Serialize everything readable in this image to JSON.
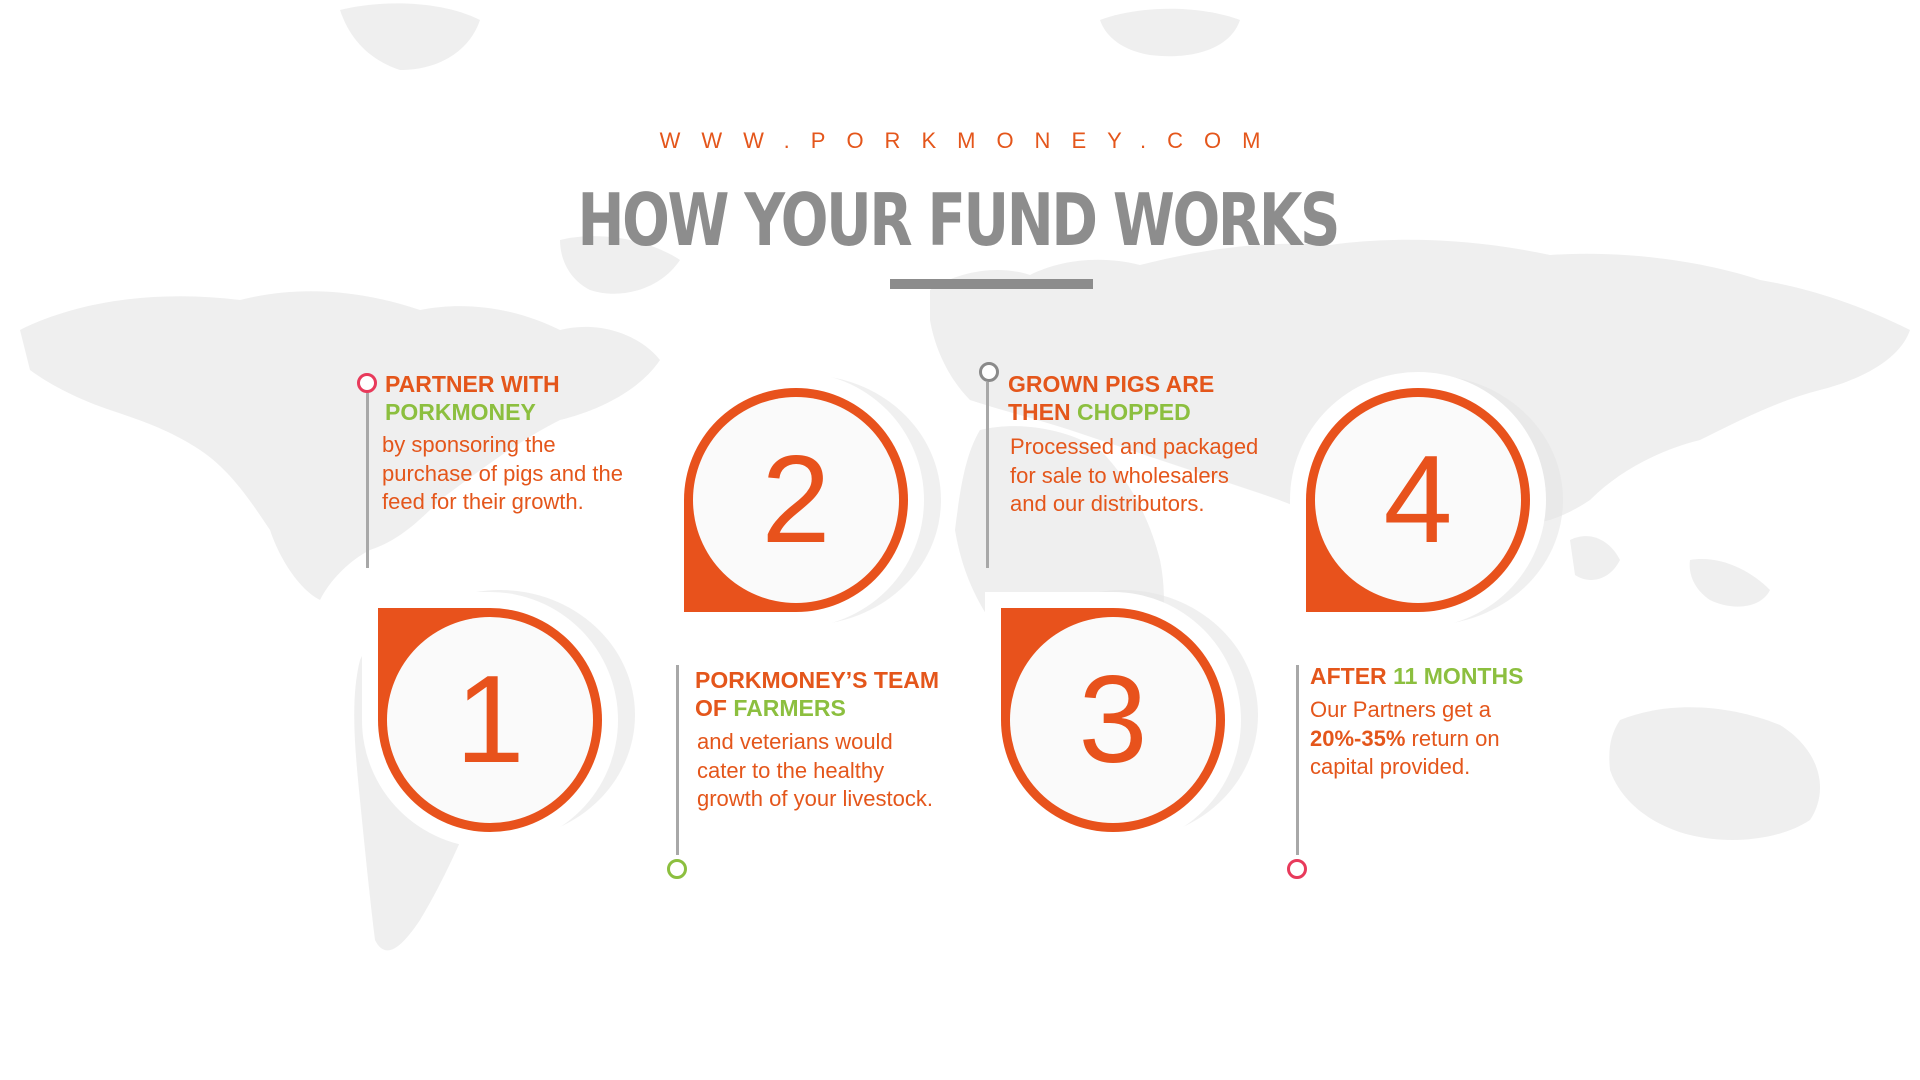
{
  "header": {
    "url": "WWW.PORKMONEY.COM",
    "title": "HOW YOUR FUND WORKS"
  },
  "colors": {
    "accent_orange": "#e8521c",
    "accent_green": "#8cbf3f",
    "title_gray": "#8d8d8d",
    "dot_red": "#e83a5b",
    "map_gray": "#ededed"
  },
  "steps": [
    {
      "number": "1",
      "title_a": "PARTNER WITH",
      "title_b": "PORKMONEY",
      "text": "by sponsoring the purchase of pigs and the feed for their growth."
    },
    {
      "number": "2",
      "title_a": "PORKMONEY’S TEAM OF",
      "title_b": "FARMERS",
      "text": "and veterians would cater to the healthy growth of your livestock."
    },
    {
      "number": "3",
      "title_a": "GROWN PIGS ARE THEN",
      "title_b": "CHOPPED",
      "text": "Processed and packaged for sale to wholesalers and our distributors."
    },
    {
      "number": "4",
      "title_a": "AFTER",
      "title_b": "11 MONTHS",
      "text_a": "Our Partners get a",
      "text_bold": "20%-35%",
      "text_b": "return on capital provided."
    }
  ]
}
